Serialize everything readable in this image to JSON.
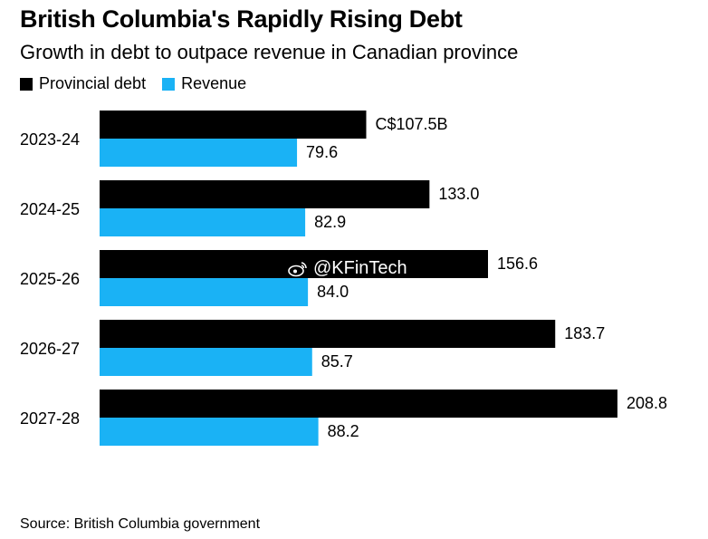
{
  "title": "British Columbia's Rapidly Rising Debt",
  "subtitle": "Growth in debt to outpace revenue in Canadian province",
  "legend": [
    {
      "label": "Provincial debt",
      "color": "#000000"
    },
    {
      "label": "Revenue",
      "color": "#1AB2F5"
    }
  ],
  "source": "Source: British Columbia government",
  "watermark": "@KFinTech",
  "chart_data": {
    "type": "bar",
    "orientation": "horizontal",
    "title": "British Columbia's Rapidly Rising Debt",
    "subtitle": "Growth in debt to outpace revenue in Canadian province",
    "categories": [
      "2023-24",
      "2024-25",
      "2025-26",
      "2026-27",
      "2027-28"
    ],
    "series": [
      {
        "name": "Provincial debt",
        "color": "#000000",
        "values": [
          107.5,
          133.0,
          156.6,
          183.7,
          208.8
        ],
        "labels": [
          "C$107.5B",
          "133.0",
          "156.6",
          "183.7",
          "208.8"
        ]
      },
      {
        "name": "Revenue",
        "color": "#1AB2F5",
        "values": [
          79.6,
          82.9,
          84.0,
          85.7,
          88.2
        ],
        "labels": [
          "79.6",
          "82.9",
          "84.0",
          "85.7",
          "88.2"
        ]
      }
    ],
    "xlim": [
      0,
      208.8
    ],
    "grid": false,
    "legend_position": "top-left"
  }
}
